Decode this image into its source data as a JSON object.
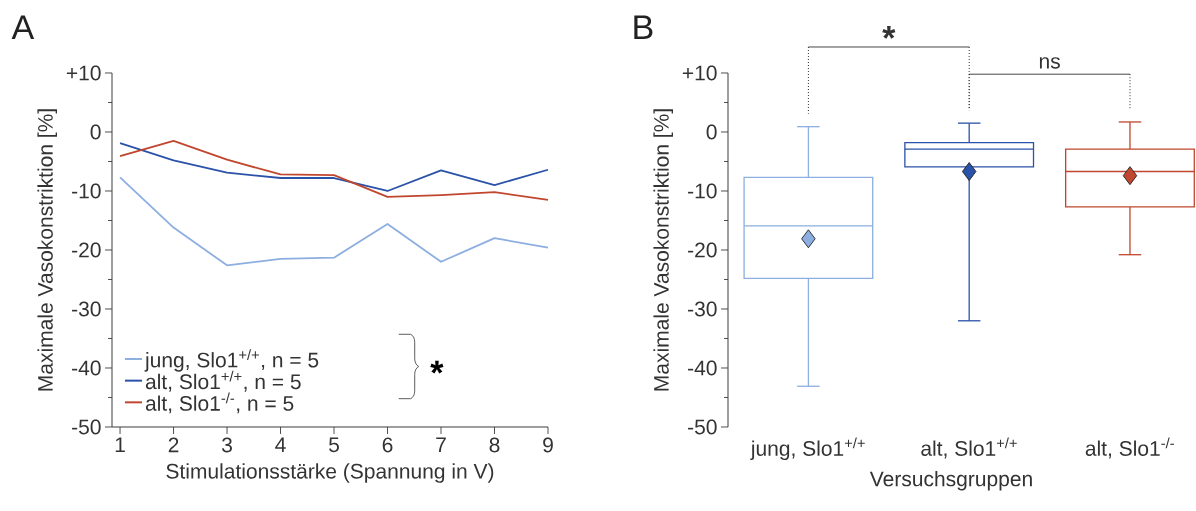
{
  "chart_data": [
    {
      "type": "line",
      "title": "A",
      "xlabel": "Stimulationsstärke (Spannung in V)",
      "ylabel": "Maximale Vasokonstriktion [%]",
      "x": [
        1,
        2,
        3,
        4,
        5,
        6,
        7,
        8,
        9
      ],
      "series": [
        {
          "name": "jung, Slo1$^{+/+}$, n = 5",
          "color": "#8caee0",
          "values": [
            -7.7,
            -16.2,
            -22.6,
            -21.5,
            -21.3,
            -15.6,
            -22.0,
            -18.0,
            -19.6
          ]
        },
        {
          "name": "alt, Slo1$^{+/+}$, n = 5",
          "color": "#2a52a8",
          "values": [
            -1.9,
            -4.8,
            -6.9,
            -7.8,
            -7.8,
            -10.0,
            -6.5,
            -9.0,
            -6.4
          ]
        },
        {
          "name": "alt, Slo1$^{-/-}$, n = 5",
          "color": "#c0462e",
          "values": [
            -4.1,
            -1.5,
            -4.7,
            -7.2,
            -7.3,
            -11.0,
            -10.7,
            -10.2,
            -11.5
          ]
        }
      ],
      "xlim": [
        0.85,
        9
      ],
      "xticks": [
        1,
        2,
        3,
        4,
        5,
        6,
        7,
        8,
        9
      ],
      "ylim": [
        -50,
        10
      ],
      "yticks": [
        {
          "value": 10,
          "label": "+10"
        },
        {
          "value": 5,
          "label": null
        },
        0,
        {
          "value": -5,
          "label": null
        },
        -10,
        {
          "value": -15,
          "label": null
        },
        -20,
        {
          "value": -25,
          "label": null
        },
        -30,
        {
          "value": -35,
          "label": null
        },
        -40,
        {
          "value": -45,
          "label": null
        },
        -50
      ],
      "legend": "bottom left",
      "marker": "none",
      "line_style": "solid",
      "annotations": [
        "*"
      ]
    },
    {
      "type": "box",
      "title": "B",
      "xlabel": "Versuchsgruppen",
      "ylabel": "Maximale Vasokonstriktion [%]",
      "categories": [
        "jung, Slo1$^{+/+}$",
        "alt, Slo1$^{+/+}$",
        "alt, Slo1$^{-/-}$"
      ],
      "colors": [
        "#8caee0",
        "#2a52a8",
        "#c0462e"
      ],
      "boxes": [
        {
          "low": -43.1,
          "q1": -24.8,
          "median": -15.9,
          "q3": -7.7,
          "high": 0.9,
          "mean": -18.1
        },
        {
          "low": -32.0,
          "q1": -5.9,
          "median": -2.9,
          "q3": -1.8,
          "high": 1.5,
          "mean": -6.7
        },
        {
          "low": -20.8,
          "q1": -12.7,
          "median": -6.7,
          "q3": -2.9,
          "high": 1.7,
          "mean": -7.4
        }
      ],
      "ylim": [
        -50,
        10
      ],
      "yticks": [
        {
          "value": 10,
          "label": "+10"
        },
        {
          "value": 5,
          "label": null
        },
        0,
        {
          "value": -5,
          "label": null
        },
        -10,
        {
          "value": -15,
          "label": null
        },
        -20,
        {
          "value": -25,
          "label": null
        },
        -30,
        {
          "value": -35,
          "label": null
        },
        -40,
        {
          "value": -45,
          "label": null
        },
        -50
      ],
      "marker": "diamond",
      "annotations": [
        "*",
        "ns"
      ]
    }
  ]
}
